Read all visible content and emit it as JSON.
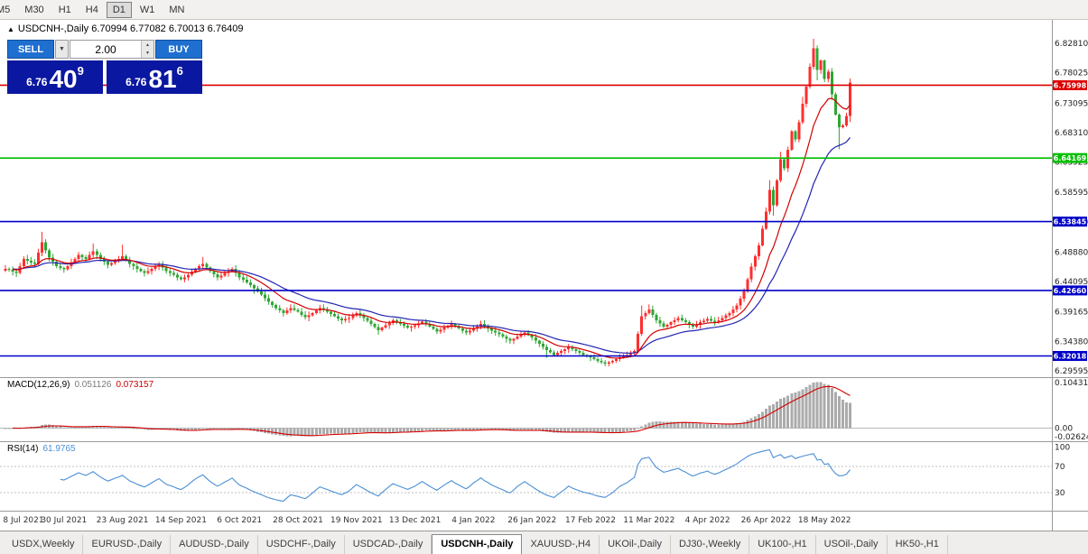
{
  "toolbar": {
    "timeframes": [
      "M5",
      "M30",
      "H1",
      "H4",
      "D1",
      "W1",
      "MN"
    ],
    "active_timeframe": "D1"
  },
  "chart": {
    "symbol_title": "USDCNH-,Daily",
    "ohlc_text": "6.70994 6.77082 6.70013 6.76409"
  },
  "trade_panel": {
    "sell_label": "SELL",
    "buy_label": "BUY",
    "volume": "2.00",
    "sell_price": {
      "prefix": "6.76",
      "big": "40",
      "sup": "9"
    },
    "buy_price": {
      "prefix": "6.76",
      "big": "81",
      "sup": "6"
    }
  },
  "chart_data": {
    "type": "candlestick",
    "symbol": "USDCNH-",
    "timeframe": "Daily",
    "colors": {
      "up_candle": "#ff2e2e",
      "down_candle": "#2fa633",
      "ma_fast": "#d40000",
      "ma_slow": "#2424b4"
    },
    "price_axis_ticks": [
      "6.82810",
      "6.78025",
      "6.73095",
      "6.68310",
      "6.63525",
      "6.58595",
      "6.53810",
      "6.48880",
      "6.44095",
      "6.39165",
      "6.34380",
      "6.29595"
    ],
    "levels": [
      {
        "price": 6.75998,
        "label": "6.75998",
        "color": "#dd0000"
      },
      {
        "price": 6.64169,
        "label": "6.64169",
        "color": "#00c000"
      },
      {
        "price": 6.53845,
        "label": "6.53845",
        "color": "#0000c8"
      },
      {
        "price": 6.4266,
        "label": "6.42660",
        "color": "#0000c8"
      },
      {
        "price": 6.32018,
        "label": "6.32018",
        "color": "#0000c8"
      }
    ],
    "x_labels": [
      {
        "index": 0,
        "label": "8 Jul 2021"
      },
      {
        "index": 16,
        "label": "30 Jul 2021"
      },
      {
        "index": 32,
        "label": "23 Aug 2021"
      },
      {
        "index": 48,
        "label": "14 Sep 2021"
      },
      {
        "index": 64,
        "label": "6 Oct 2021"
      },
      {
        "index": 80,
        "label": "28 Oct 2021"
      },
      {
        "index": 96,
        "label": "19 Nov 2021"
      },
      {
        "index": 112,
        "label": "13 Dec 2021"
      },
      {
        "index": 128,
        "label": "4 Jan 2022"
      },
      {
        "index": 144,
        "label": "26 Jan 2022"
      },
      {
        "index": 160,
        "label": "17 Feb 2022"
      },
      {
        "index": 176,
        "label": "11 Mar 2022"
      },
      {
        "index": 192,
        "label": "4 Apr 2022"
      },
      {
        "index": 208,
        "label": "26 Apr 2022"
      },
      {
        "index": 224,
        "label": "18 May 2022"
      }
    ],
    "candles": {
      "first_open": 6.459,
      "closes": [
        6.462,
        6.46,
        6.457,
        6.455,
        6.466,
        6.478,
        6.475,
        6.472,
        6.47,
        6.488,
        6.505,
        6.492,
        6.48,
        6.473,
        6.466,
        6.463,
        6.461,
        6.466,
        6.472,
        6.478,
        6.484,
        6.481,
        6.478,
        6.484,
        6.49,
        6.484,
        6.478,
        6.473,
        6.468,
        6.471,
        6.475,
        6.478,
        6.482,
        6.476,
        6.47,
        6.466,
        6.462,
        6.458,
        6.455,
        6.458,
        6.462,
        6.466,
        6.47,
        6.464,
        6.458,
        6.455,
        6.452,
        6.448,
        6.445,
        6.448,
        6.452,
        6.457,
        6.462,
        6.466,
        6.47,
        6.464,
        6.458,
        6.453,
        6.448,
        6.451,
        6.455,
        6.458,
        6.462,
        6.455,
        6.448,
        6.444,
        6.44,
        6.435,
        6.43,
        6.425,
        6.42,
        6.414,
        6.408,
        6.403,
        6.398,
        6.394,
        6.39,
        6.394,
        6.398,
        6.395,
        6.392,
        6.387,
        6.383,
        6.386,
        6.39,
        6.394,
        6.398,
        6.395,
        6.392,
        6.388,
        6.385,
        6.381,
        6.378,
        6.38,
        6.382,
        6.386,
        6.39,
        6.386,
        6.382,
        6.377,
        6.372,
        6.367,
        6.362,
        6.366,
        6.37,
        6.374,
        6.378,
        6.375,
        6.372,
        6.369,
        6.366,
        6.368,
        6.37,
        6.373,
        6.376,
        6.372,
        6.368,
        6.364,
        6.36,
        6.363,
        6.366,
        6.369,
        6.372,
        6.368,
        6.365,
        6.361,
        6.358,
        6.361,
        6.365,
        6.368,
        6.372,
        6.368,
        6.365,
        6.361,
        6.358,
        6.355,
        6.352,
        6.348,
        6.345,
        6.348,
        6.352,
        6.355,
        6.358,
        6.354,
        6.35,
        6.345,
        6.34,
        6.335,
        6.33,
        6.326,
        6.322,
        6.325,
        6.328,
        6.331,
        6.335,
        6.331,
        6.328,
        6.325,
        6.322,
        6.32,
        6.318,
        6.315,
        6.312,
        6.31,
        6.308,
        6.31,
        6.312,
        6.315,
        6.318,
        6.32,
        6.322,
        6.325,
        6.328,
        6.356,
        6.385,
        6.39,
        6.396,
        6.387,
        6.378,
        6.373,
        6.368,
        6.371,
        6.375,
        6.378,
        6.382,
        6.378,
        6.375,
        6.371,
        6.368,
        6.371,
        6.375,
        6.377,
        6.38,
        6.377,
        6.375,
        6.378,
        6.382,
        6.386,
        6.39,
        6.396,
        6.402,
        6.413,
        6.425,
        6.445,
        6.465,
        6.482,
        6.5,
        6.527,
        6.555,
        6.59,
        6.565,
        6.605,
        6.64,
        6.625,
        6.655,
        6.685,
        6.672,
        6.7,
        6.73,
        6.758,
        6.79,
        6.82,
        6.785,
        6.8,
        6.77,
        6.782,
        6.745,
        6.712,
        6.692,
        6.695,
        6.71,
        6.764
      ],
      "high_overrides": {
        "10": 6.522,
        "24": 6.503,
        "32": 6.501,
        "54": 6.481,
        "174": 6.402,
        "176": 6.404,
        "209": 6.606,
        "212": 6.652,
        "218": 6.741,
        "221": 6.8355
      },
      "low_overrides": {
        "3": 6.4485,
        "68": 6.421,
        "102": 6.3545,
        "148": 6.317,
        "164": 6.3035,
        "210": 6.548,
        "222": 6.768,
        "226": 6.736,
        "228": 6.656
      },
      "last_ohlc": [
        6.70994,
        6.77082,
        6.70013,
        6.76409
      ]
    },
    "macd": {
      "label": "MACD(12,26,9)",
      "value_main": "0.051126",
      "value_signal": "0.073157",
      "axis_labels": [
        "0.104313",
        "0.00",
        "-0.02624"
      ],
      "histogram_color": "#ababab",
      "signal_color": "#d40000"
    },
    "rsi": {
      "label": "RSI(14)",
      "value": "61.9765",
      "axis_labels": [
        "100",
        "70",
        "30"
      ],
      "level_lines": [
        70,
        30
      ],
      "line_color": "#4a8fd4"
    }
  },
  "tabs": {
    "items": [
      "USDX,Weekly",
      "EURUSD-,Daily",
      "AUDUSD-,Daily",
      "USDCHF-,Daily",
      "USDCAD-,Daily",
      "USDCNH-,Daily",
      "XAUUSD-,H4",
      "UKOil-,Daily",
      "DJ30-,Weekly",
      "UK100-,H1",
      "USOil-,Daily",
      "HK50-,H1"
    ],
    "active_index": 5
  }
}
